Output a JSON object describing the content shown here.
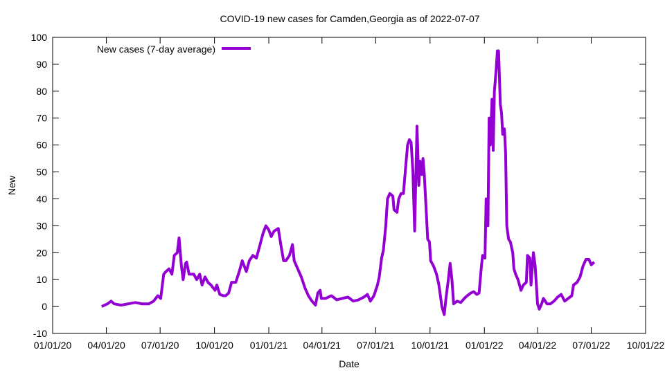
{
  "chart_data": {
    "type": "line",
    "title": "COVID-19 new cases for Camden,Georgia as of 2022-07-07",
    "xlabel": "Date",
    "ylabel": "New",
    "ylim": [
      -10,
      100
    ],
    "yticks": [
      -10,
      0,
      10,
      20,
      30,
      40,
      50,
      60,
      70,
      80,
      90,
      100
    ],
    "x_unit": "days since 01/01/20",
    "xlim": [
      0,
      1004
    ],
    "xticks": [
      {
        "day": 0,
        "label": "01/01/20"
      },
      {
        "day": 91,
        "label": "04/01/20"
      },
      {
        "day": 182,
        "label": "07/01/20"
      },
      {
        "day": 274,
        "label": "10/01/20"
      },
      {
        "day": 366,
        "label": "01/01/21"
      },
      {
        "day": 456,
        "label": "04/01/21"
      },
      {
        "day": 547,
        "label": "07/01/21"
      },
      {
        "day": 639,
        "label": "10/01/21"
      },
      {
        "day": 731,
        "label": "01/01/22"
      },
      {
        "day": 821,
        "label": "04/01/22"
      },
      {
        "day": 912,
        "label": "07/01/22"
      },
      {
        "day": 1004,
        "label": "10/01/22"
      }
    ],
    "legend": "top-left",
    "grid": false,
    "series": [
      {
        "name": "New cases (7-day average)",
        "color": "#9400d3",
        "points": [
          [
            83,
            0
          ],
          [
            93,
            1
          ],
          [
            99,
            2
          ],
          [
            104,
            1
          ],
          [
            116,
            0.5
          ],
          [
            128,
            1
          ],
          [
            140,
            1.5
          ],
          [
            151,
            1
          ],
          [
            163,
            1
          ],
          [
            171,
            2
          ],
          [
            178,
            4
          ],
          [
            183,
            3
          ],
          [
            188,
            12
          ],
          [
            192,
            13
          ],
          [
            197,
            14
          ],
          [
            202,
            12
          ],
          [
            206,
            19
          ],
          [
            211,
            20
          ],
          [
            214,
            25.5
          ],
          [
            218,
            15
          ],
          [
            221,
            10
          ],
          [
            225,
            16
          ],
          [
            227,
            16.5
          ],
          [
            231,
            12
          ],
          [
            239,
            12
          ],
          [
            244,
            10
          ],
          [
            249,
            12
          ],
          [
            253,
            8
          ],
          [
            258,
            11
          ],
          [
            263,
            9
          ],
          [
            268,
            8
          ],
          [
            275,
            6
          ],
          [
            278,
            8
          ],
          [
            283,
            4.5
          ],
          [
            289,
            4
          ],
          [
            293,
            4
          ],
          [
            298,
            5
          ],
          [
            303,
            9
          ],
          [
            310,
            9
          ],
          [
            316,
            13
          ],
          [
            321,
            17
          ],
          [
            328,
            13
          ],
          [
            333,
            17
          ],
          [
            339,
            19
          ],
          [
            345,
            18
          ],
          [
            350,
            22
          ],
          [
            356,
            27
          ],
          [
            361,
            30
          ],
          [
            366,
            28.5
          ],
          [
            370,
            26
          ],
          [
            375,
            28
          ],
          [
            382,
            29
          ],
          [
            387,
            22
          ],
          [
            391,
            17
          ],
          [
            395,
            17
          ],
          [
            401,
            19
          ],
          [
            406,
            23
          ],
          [
            409,
            17
          ],
          [
            415,
            14
          ],
          [
            421,
            11
          ],
          [
            427,
            7
          ],
          [
            433,
            4
          ],
          [
            439,
            2
          ],
          [
            445,
            0.5
          ],
          [
            449,
            5
          ],
          [
            453,
            6
          ],
          [
            455,
            3
          ],
          [
            462,
            3
          ],
          [
            472,
            4
          ],
          [
            481,
            2.5
          ],
          [
            490,
            3
          ],
          [
            500,
            3.5
          ],
          [
            509,
            2
          ],
          [
            518,
            2.5
          ],
          [
            527,
            3.5
          ],
          [
            533,
            4.5
          ],
          [
            538,
            2
          ],
          [
            544,
            4
          ],
          [
            550,
            8
          ],
          [
            553,
            11
          ],
          [
            557,
            18
          ],
          [
            560,
            21
          ],
          [
            564,
            30
          ],
          [
            567,
            40
          ],
          [
            571,
            42
          ],
          [
            576,
            41
          ],
          [
            578,
            36
          ],
          [
            583,
            35
          ],
          [
            586,
            40
          ],
          [
            590,
            42
          ],
          [
            594,
            42
          ],
          [
            597,
            50
          ],
          [
            601,
            60
          ],
          [
            604,
            62
          ],
          [
            607,
            61
          ],
          [
            610,
            50
          ],
          [
            613,
            28
          ],
          [
            615,
            48
          ],
          [
            617,
            67
          ],
          [
            620,
            45
          ],
          [
            622,
            54
          ],
          [
            625,
            49
          ],
          [
            627,
            55
          ],
          [
            629,
            50
          ],
          [
            632,
            38
          ],
          [
            635,
            25
          ],
          [
            638,
            24
          ],
          [
            640,
            17
          ],
          [
            645,
            15
          ],
          [
            650,
            12
          ],
          [
            654,
            8
          ],
          [
            659,
            0
          ],
          [
            663,
            -3
          ],
          [
            666,
            3
          ],
          [
            670,
            10
          ],
          [
            673,
            16
          ],
          [
            676,
            10
          ],
          [
            679,
            1
          ],
          [
            685,
            2
          ],
          [
            691,
            1.5
          ],
          [
            697,
            3
          ],
          [
            702,
            4
          ],
          [
            708,
            5
          ],
          [
            713,
            5.5
          ],
          [
            718,
            4.5
          ],
          [
            722,
            5
          ],
          [
            726,
            15
          ],
          [
            728,
            19
          ],
          [
            732,
            18
          ],
          [
            734,
            40
          ],
          [
            737,
            30
          ],
          [
            739,
            70
          ],
          [
            741,
            60
          ],
          [
            744,
            77
          ],
          [
            746,
            58
          ],
          [
            748,
            80
          ],
          [
            751,
            88
          ],
          [
            753,
            95
          ],
          [
            755,
            95
          ],
          [
            758,
            75
          ],
          [
            760,
            72
          ],
          [
            762,
            64
          ],
          [
            765,
            66
          ],
          [
            767,
            57
          ],
          [
            769,
            30
          ],
          [
            772,
            25
          ],
          [
            775,
            24
          ],
          [
            779,
            20
          ],
          [
            781,
            14
          ],
          [
            784,
            12
          ],
          [
            788,
            10
          ],
          [
            793,
            6
          ],
          [
            797,
            8
          ],
          [
            802,
            9
          ],
          [
            804,
            19
          ],
          [
            808,
            18
          ],
          [
            810,
            8
          ],
          [
            814,
            20
          ],
          [
            817,
            15
          ],
          [
            821,
            1
          ],
          [
            824,
            -1
          ],
          [
            828,
            1
          ],
          [
            831,
            3
          ],
          [
            837,
            1
          ],
          [
            843,
            1
          ],
          [
            849,
            2
          ],
          [
            855,
            3.5
          ],
          [
            861,
            4.5
          ],
          [
            867,
            2
          ],
          [
            873,
            3
          ],
          [
            879,
            4
          ],
          [
            882,
            8
          ],
          [
            888,
            9
          ],
          [
            893,
            11
          ],
          [
            898,
            15
          ],
          [
            903,
            17.5
          ],
          [
            908,
            17.5
          ],
          [
            912,
            15.5
          ],
          [
            917,
            16.5
          ]
        ]
      }
    ]
  }
}
